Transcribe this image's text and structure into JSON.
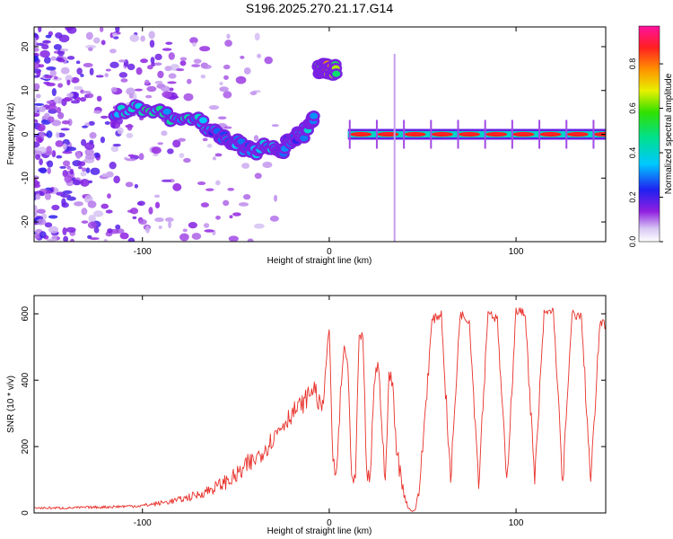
{
  "title": "S196.2025.270.21.17.G14",
  "chart_data": [
    {
      "type": "heatmap",
      "xlabel": "Height of straight line (km)",
      "ylabel": "Frequency (Hz)",
      "xlim": [
        -158,
        148
      ],
      "ylim": [
        -24.5,
        24.5
      ],
      "xticks": [
        -100,
        0,
        100
      ],
      "xtick_labels": [
        "-100",
        "0",
        "100"
      ],
      "yticks": [
        20,
        10,
        0,
        -10,
        -20
      ],
      "ytick_labels": [
        "20",
        "10",
        "0",
        "-10",
        "-20"
      ],
      "colorbar": {
        "label": "Normalized spectral amplitude",
        "range": [
          0,
          0.97
        ],
        "ticks": [
          0,
          0.2,
          0.4,
          0.6,
          0.8
        ],
        "tick_labels": [
          "0.0",
          "0.2",
          "0.4",
          "0.6",
          "0.8"
        ]
      },
      "ridges": [
        {
          "x": [
            -115,
            -100,
            -85,
            -70,
            -60,
            -50,
            -42,
            -34,
            -26,
            -20,
            -14,
            -10,
            -8
          ],
          "y": [
            5,
            6,
            4,
            3,
            0,
            -2,
            -4,
            -3,
            -4,
            -1,
            0,
            2,
            4
          ],
          "amplitude": [
            0.35,
            0.5,
            0.45,
            0.4,
            0.3,
            0.35,
            0.3,
            0.45,
            0.3,
            0.3,
            0.35,
            0.45,
            0.4
          ]
        },
        {
          "x": [
            -6,
            -4,
            -1,
            2,
            4
          ],
          "y": [
            15,
            15,
            15,
            14.5,
            15
          ],
          "amplitude": [
            0.5,
            0.8,
            0.9,
            0.7,
            0.6
          ]
        },
        {
          "x": [
            10,
            148
          ],
          "y": [
            0,
            0
          ],
          "amplitude": [
            0.9,
            0.9
          ]
        }
      ]
    },
    {
      "type": "line",
      "xlabel": "Height of straight line (km)",
      "ylabel": "SNR (10 * v/v)",
      "xlim": [
        -158,
        148
      ],
      "ylim": [
        0,
        655
      ],
      "xticks": [
        -100,
        0,
        100
      ],
      "xtick_labels": [
        "-100",
        "0",
        "100"
      ],
      "yticks": [
        0,
        200,
        400,
        600
      ],
      "ytick_labels": [
        "0",
        "200",
        "400",
        "600"
      ],
      "series": [
        {
          "name": "SNR",
          "x": [
            -158,
            -140,
            -120,
            -100,
            -90,
            -80,
            -70,
            -60,
            -50,
            -40,
            -32,
            -26,
            -20,
            -14,
            -8,
            -4,
            0,
            2,
            4,
            6,
            8,
            10,
            12,
            14,
            16,
            18,
            20,
            22,
            24,
            26,
            28,
            30,
            32,
            34,
            36,
            38,
            40,
            42,
            44,
            46,
            48,
            50,
            55,
            60,
            65,
            70,
            75,
            80,
            85,
            90,
            95,
            100,
            105,
            110,
            115,
            120,
            125,
            130,
            135,
            140,
            145,
            148
          ],
          "y": [
            15,
            15,
            18,
            22,
            30,
            40,
            55,
            80,
            110,
            160,
            210,
            260,
            300,
            330,
            380,
            300,
            560,
            140,
            120,
            350,
            500,
            450,
            90,
            100,
            520,
            540,
            110,
            100,
            400,
            450,
            300,
            80,
            420,
            380,
            200,
            120,
            60,
            20,
            5,
            10,
            60,
            200,
            580,
            600,
            95,
            600,
            580,
            95,
            610,
            580,
            90,
            610,
            600,
            90,
            600,
            610,
            90,
            600,
            590,
            90,
            580,
            560
          ]
        }
      ]
    }
  ]
}
